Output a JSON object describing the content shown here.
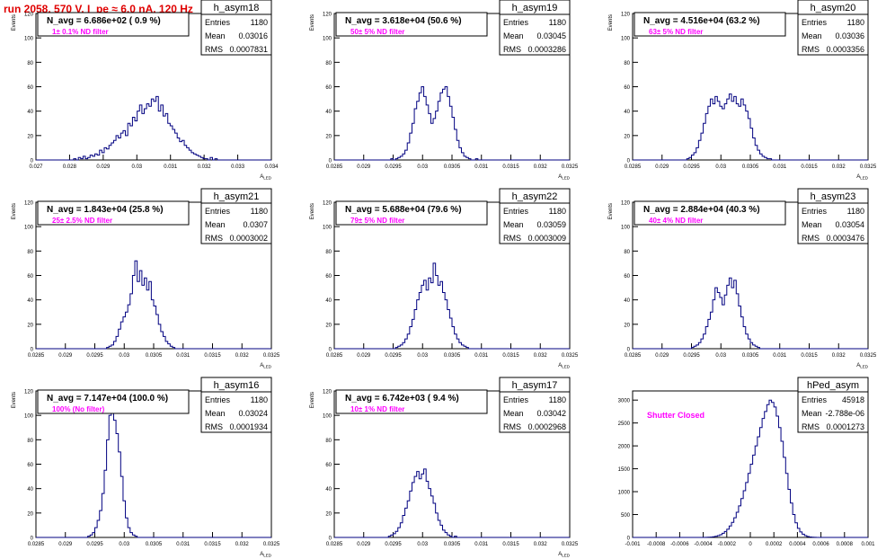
{
  "page_title": "run 2058,   570 V, I_pe ≈ 6.0 nA, 120 Hz",
  "colors": {
    "title": "#e00000",
    "histogram": "#000080",
    "note": "#ff00ff",
    "frame": "#000000"
  },
  "chart_data": [
    {
      "type": "histogram",
      "name": "h_asym18",
      "navg": "N_avg = 6.686e+02 ( 0.9 %)",
      "note": "1± 0.1% ND filter",
      "stats": [
        [
          "Entries",
          "1180"
        ],
        [
          "Mean",
          "0.03016"
        ],
        [
          "RMS",
          "0.0007831"
        ]
      ],
      "xlim": [
        0.027,
        0.034
      ],
      "ylim": [
        0,
        120
      ],
      "xticks": [
        "0.027",
        "0.028",
        "0.029",
        "0.03",
        "0.031",
        "0.032",
        "0.033",
        "0.034"
      ],
      "yticks": [
        "0",
        "20",
        "40",
        "60",
        "80",
        "100",
        "120"
      ],
      "xlabel": "A_LED",
      "ylabel": "Events",
      "bins": 100,
      "values": [
        0,
        0,
        0,
        0,
        0,
        0,
        0,
        0,
        0,
        0,
        0,
        0,
        0,
        0,
        0,
        0,
        1,
        0,
        2,
        1,
        3,
        1,
        2,
        4,
        3,
        5,
        4,
        8,
        6,
        10,
        9,
        12,
        14,
        16,
        20,
        18,
        22,
        24,
        20,
        30,
        28,
        35,
        32,
        40,
        45,
        38,
        42,
        46,
        44,
        50,
        48,
        52,
        40,
        45,
        36,
        38,
        30,
        28,
        25,
        22,
        18,
        15,
        16,
        12,
        10,
        8,
        6,
        5,
        4,
        3,
        2,
        1,
        1,
        0,
        2,
        0,
        1,
        0,
        0,
        0,
        0,
        0,
        0,
        0,
        0,
        0,
        0,
        0,
        0,
        0,
        0,
        0,
        0,
        0,
        0,
        0,
        0,
        0,
        0,
        0
      ]
    },
    {
      "type": "histogram",
      "name": "h_asym19",
      "navg": "N_avg = 3.618e+04 (50.6 %)",
      "note": "50± 5% ND filter",
      "stats": [
        [
          "Entries",
          "1180"
        ],
        [
          "Mean",
          "0.03045"
        ],
        [
          "RMS",
          "0.0003286"
        ]
      ],
      "xlim": [
        0.0285,
        0.0325
      ],
      "ylim": [
        0,
        120
      ],
      "xticks": [
        "0.0285",
        "0.029",
        "0.0295",
        "0.03",
        "0.0305",
        "0.031",
        "0.0315",
        "0.032",
        "0.0325"
      ],
      "yticks": [
        "0",
        "20",
        "40",
        "60",
        "80",
        "100",
        "120"
      ],
      "xlabel": "A_LED",
      "ylabel": "Events",
      "bins": 100,
      "values": [
        0,
        0,
        0,
        0,
        0,
        0,
        0,
        0,
        0,
        0,
        0,
        0,
        0,
        0,
        0,
        0,
        0,
        0,
        0,
        0,
        0,
        0,
        0,
        0,
        1,
        0,
        1,
        2,
        3,
        5,
        8,
        14,
        22,
        30,
        42,
        48,
        55,
        60,
        52,
        45,
        38,
        30,
        34,
        40,
        48,
        55,
        58,
        60,
        52,
        44,
        35,
        25,
        16,
        10,
        6,
        3,
        2,
        1,
        0,
        0,
        1,
        0,
        0,
        0,
        0,
        0,
        0,
        0,
        0,
        0,
        0,
        0,
        0,
        0,
        0,
        0,
        0,
        0,
        0,
        0,
        0,
        0,
        0,
        0,
        0,
        0,
        0,
        0,
        0,
        0,
        0,
        0,
        0,
        0,
        0,
        0,
        0,
        0,
        0,
        0
      ]
    },
    {
      "type": "histogram",
      "name": "h_asym20",
      "navg": "N_avg = 4.516e+04 (63.2 %)",
      "note": "63± 5% ND filter",
      "stats": [
        [
          "Entries",
          "1180"
        ],
        [
          "Mean",
          "0.03036"
        ],
        [
          "RMS",
          "0.0003356"
        ]
      ],
      "xlim": [
        0.0285,
        0.0325
      ],
      "ylim": [
        0,
        120
      ],
      "xticks": [
        "0.0285",
        "0.029",
        "0.0295",
        "0.03",
        "0.0305",
        "0.031",
        "0.0315",
        "0.032",
        "0.0325"
      ],
      "yticks": [
        "0",
        "20",
        "40",
        "60",
        "80",
        "100",
        "120"
      ],
      "xlabel": "A_LED",
      "ylabel": "Events",
      "bins": 100,
      "values": [
        0,
        0,
        0,
        0,
        0,
        0,
        0,
        0,
        0,
        0,
        0,
        0,
        0,
        0,
        0,
        0,
        0,
        0,
        0,
        0,
        0,
        0,
        0,
        1,
        2,
        4,
        6,
        10,
        16,
        22,
        30,
        38,
        44,
        50,
        46,
        52,
        48,
        44,
        42,
        46,
        50,
        54,
        48,
        52,
        46,
        44,
        50,
        45,
        40,
        34,
        26,
        18,
        12,
        8,
        5,
        3,
        2,
        1,
        1,
        0,
        0,
        0,
        0,
        0,
        0,
        0,
        0,
        0,
        0,
        0,
        0,
        0,
        0,
        0,
        0,
        0,
        0,
        0,
        0,
        0,
        0,
        0,
        0,
        0,
        0,
        0,
        0,
        0,
        0,
        0,
        0,
        0,
        0,
        0,
        0,
        0,
        0,
        0,
        0,
        0
      ]
    },
    {
      "type": "histogram",
      "name": "h_asym21",
      "navg": "N_avg = 1.843e+04 (25.8 %)",
      "note": "25± 2.5% ND filter",
      "stats": [
        [
          "Entries",
          "1180"
        ],
        [
          "Mean",
          "0.0307"
        ],
        [
          "RMS",
          "0.0003002"
        ]
      ],
      "xlim": [
        0.0285,
        0.0325
      ],
      "ylim": [
        0,
        120
      ],
      "xticks": [
        "0.0285",
        "0.029",
        "0.0295",
        "0.03",
        "0.0305",
        "0.031",
        "0.0315",
        "0.032",
        "0.0325"
      ],
      "yticks": [
        "0",
        "20",
        "40",
        "60",
        "80",
        "100",
        "120"
      ],
      "xlabel": "A_LED",
      "ylabel": "Events",
      "bins": 100,
      "values": [
        0,
        0,
        0,
        0,
        0,
        0,
        0,
        0,
        0,
        0,
        0,
        0,
        0,
        0,
        0,
        0,
        0,
        0,
        0,
        0,
        0,
        0,
        0,
        0,
        0,
        0,
        0,
        0,
        0,
        0,
        1,
        2,
        3,
        6,
        10,
        16,
        22,
        26,
        30,
        36,
        45,
        60,
        72,
        55,
        64,
        52,
        58,
        48,
        55,
        40,
        35,
        28,
        20,
        14,
        10,
        6,
        4,
        2,
        1,
        0,
        0,
        0,
        0,
        0,
        0,
        0,
        0,
        0,
        0,
        0,
        0,
        0,
        0,
        0,
        0,
        0,
        0,
        0,
        0,
        0,
        0,
        0,
        0,
        0,
        0,
        0,
        0,
        0,
        0,
        0,
        0,
        0,
        0,
        0,
        0,
        0,
        0,
        0,
        0,
        0
      ]
    },
    {
      "type": "histogram",
      "name": "h_asym22",
      "navg": "N_avg = 5.688e+04 (79.6 %)",
      "note": "79± 5% ND filter",
      "stats": [
        [
          "Entries",
          "1180"
        ],
        [
          "Mean",
          "0.03059"
        ],
        [
          "RMS",
          "0.0003009"
        ]
      ],
      "xlim": [
        0.0285,
        0.0325
      ],
      "ylim": [
        0,
        120
      ],
      "xticks": [
        "0.0285",
        "0.029",
        "0.0295",
        "0.03",
        "0.0305",
        "0.031",
        "0.0315",
        "0.032",
        "0.0325"
      ],
      "yticks": [
        "0",
        "20",
        "40",
        "60",
        "80",
        "100",
        "120"
      ],
      "xlabel": "A_LED",
      "ylabel": "Events",
      "bins": 100,
      "values": [
        0,
        0,
        0,
        0,
        0,
        0,
        0,
        0,
        0,
        0,
        0,
        0,
        0,
        0,
        0,
        0,
        0,
        0,
        0,
        0,
        0,
        0,
        0,
        0,
        0,
        0,
        1,
        2,
        3,
        5,
        8,
        12,
        18,
        24,
        32,
        40,
        46,
        52,
        56,
        48,
        58,
        54,
        70,
        60,
        52,
        55,
        46,
        40,
        32,
        25,
        18,
        12,
        8,
        5,
        3,
        2,
        1,
        0,
        0,
        0,
        0,
        0,
        0,
        0,
        0,
        0,
        0,
        0,
        0,
        0,
        0,
        0,
        0,
        0,
        0,
        0,
        0,
        0,
        0,
        0,
        0,
        0,
        0,
        0,
        0,
        0,
        0,
        0,
        0,
        0,
        0,
        0,
        0,
        0,
        0,
        0,
        0,
        0,
        0,
        0
      ]
    },
    {
      "type": "histogram",
      "name": "h_asym23",
      "navg": "N_avg = 2.884e+04 (40.3 %)",
      "note": "40± 4% ND filter",
      "stats": [
        [
          "Entries",
          "1180"
        ],
        [
          "Mean",
          "0.03054"
        ],
        [
          "RMS",
          "0.0003476"
        ]
      ],
      "xlim": [
        0.0285,
        0.0325
      ],
      "ylim": [
        0,
        120
      ],
      "xticks": [
        "0.0285",
        "0.029",
        "0.0295",
        "0.03",
        "0.0305",
        "0.031",
        "0.0315",
        "0.032",
        "0.0325"
      ],
      "yticks": [
        "0",
        "20",
        "40",
        "60",
        "80",
        "100",
        "120"
      ],
      "xlabel": "A_LED",
      "ylabel": "Events",
      "bins": 100,
      "values": [
        0,
        0,
        0,
        0,
        0,
        0,
        0,
        0,
        0,
        0,
        0,
        0,
        0,
        0,
        0,
        0,
        0,
        0,
        0,
        0,
        0,
        0,
        0,
        0,
        0,
        1,
        2,
        3,
        5,
        8,
        12,
        18,
        24,
        30,
        40,
        50,
        46,
        42,
        36,
        44,
        52,
        58,
        50,
        56,
        45,
        35,
        26,
        18,
        12,
        8,
        5,
        3,
        2,
        1,
        0,
        0,
        0,
        0,
        0,
        0,
        0,
        0,
        0,
        0,
        0,
        0,
        0,
        0,
        0,
        0,
        0,
        0,
        0,
        0,
        0,
        0,
        0,
        0,
        0,
        0,
        0,
        0,
        0,
        0,
        0,
        0,
        0,
        0,
        0,
        0,
        0,
        0,
        0,
        0,
        0,
        0,
        0,
        0,
        0,
        0
      ]
    },
    {
      "type": "histogram",
      "name": "h_asym16",
      "navg": "N_avg = 7.147e+04 (100.0 %)",
      "note": "100% (No filter)",
      "stats": [
        [
          "Entries",
          "1180"
        ],
        [
          "Mean",
          "0.03024"
        ],
        [
          "RMS",
          "0.0001934"
        ]
      ],
      "xlim": [
        0.0285,
        0.0325
      ],
      "ylim": [
        0,
        120
      ],
      "xticks": [
        "0.0285",
        "0.029",
        "0.0295",
        "0.03",
        "0.0305",
        "0.031",
        "0.0315",
        "0.032",
        "0.0325"
      ],
      "yticks": [
        "0",
        "20",
        "40",
        "60",
        "80",
        "100",
        "120"
      ],
      "xlabel": "A_LED",
      "ylabel": "Events",
      "bins": 100,
      "values": [
        0,
        0,
        0,
        0,
        0,
        0,
        0,
        0,
        0,
        0,
        0,
        0,
        0,
        0,
        0,
        0,
        0,
        0,
        0,
        0,
        0,
        0,
        1,
        2,
        4,
        8,
        14,
        22,
        36,
        55,
        80,
        100,
        110,
        96,
        85,
        70,
        50,
        30,
        16,
        8,
        4,
        2,
        1,
        0,
        0,
        0,
        0,
        0,
        0,
        0,
        0,
        0,
        0,
        0,
        0,
        0,
        0,
        0,
        0,
        0,
        0,
        0,
        0,
        0,
        0,
        0,
        0,
        0,
        0,
        0,
        0,
        0,
        0,
        0,
        0,
        0,
        0,
        0,
        0,
        0,
        0,
        0,
        0,
        0,
        0,
        0,
        0,
        0,
        0,
        0,
        0,
        0,
        0,
        0,
        0,
        0,
        0,
        0,
        0,
        0
      ]
    },
    {
      "type": "histogram",
      "name": "h_asym17",
      "navg": "N_avg = 6.742e+03 ( 9.4 %)",
      "note": "10± 1% ND filter",
      "stats": [
        [
          "Entries",
          "1180"
        ],
        [
          "Mean",
          "0.03042"
        ],
        [
          "RMS",
          "0.0002968"
        ]
      ],
      "xlim": [
        0.0285,
        0.0325
      ],
      "ylim": [
        0,
        120
      ],
      "xticks": [
        "0.0285",
        "0.029",
        "0.0295",
        "0.03",
        "0.0305",
        "0.031",
        "0.0315",
        "0.032",
        "0.0325"
      ],
      "yticks": [
        "0",
        "20",
        "40",
        "60",
        "80",
        "100",
        "120"
      ],
      "xlabel": "A_LED",
      "ylabel": "Events",
      "bins": 100,
      "values": [
        0,
        0,
        0,
        0,
        0,
        0,
        0,
        0,
        0,
        0,
        0,
        0,
        0,
        0,
        0,
        0,
        0,
        0,
        0,
        0,
        0,
        0,
        0,
        1,
        2,
        3,
        5,
        8,
        12,
        18,
        24,
        30,
        38,
        45,
        50,
        54,
        48,
        52,
        56,
        46,
        40,
        34,
        28,
        20,
        14,
        10,
        6,
        4,
        2,
        1,
        0,
        1,
        0,
        0,
        0,
        0,
        0,
        0,
        0,
        0,
        0,
        0,
        0,
        0,
        0,
        0,
        0,
        0,
        0,
        0,
        0,
        0,
        0,
        0,
        0,
        0,
        0,
        0,
        0,
        0,
        0,
        0,
        0,
        0,
        0,
        0,
        0,
        0,
        0,
        0,
        0,
        0,
        0,
        0,
        0,
        0,
        0,
        0,
        0,
        0
      ]
    },
    {
      "type": "histogram",
      "name": "hPed_asym",
      "navg": "",
      "note": "Shutter Closed",
      "stats": [
        [
          "Entries",
          "45918"
        ],
        [
          "Mean",
          "-2.788e-06"
        ],
        [
          "RMS",
          "0.0001273"
        ]
      ],
      "xlim": [
        -0.001,
        0.001
      ],
      "ylim": [
        0,
        3200
      ],
      "xticks": [
        "-0.001",
        "-0.0008",
        "-0.0006",
        "-0.0004",
        "-0.0002",
        "0",
        "0.0002",
        "0.0004",
        "0.0006",
        "0.0008",
        "0.001"
      ],
      "yticks": [
        "0",
        "500",
        "1000",
        "1500",
        "2000",
        "2500",
        "3000"
      ],
      "xlabel": "",
      "ylabel": "",
      "bins": 100,
      "values": [
        0,
        0,
        0,
        0,
        0,
        0,
        0,
        0,
        0,
        0,
        0,
        0,
        0,
        0,
        0,
        0,
        0,
        0,
        0,
        0,
        0,
        0,
        0,
        0,
        0,
        0,
        0,
        0,
        0,
        0,
        1,
        2,
        4,
        8,
        15,
        25,
        40,
        60,
        90,
        130,
        180,
        250,
        330,
        430,
        550,
        690,
        850,
        1020,
        1200,
        1400,
        1600,
        1800,
        2000,
        2200,
        2400,
        2600,
        2750,
        2900,
        3000,
        2950,
        2850,
        2650,
        2400,
        2100,
        1750,
        1400,
        1050,
        750,
        500,
        320,
        200,
        120,
        70,
        40,
        20,
        10,
        5,
        2,
        1,
        0,
        0,
        0,
        0,
        0,
        0,
        0,
        0,
        0,
        0,
        0,
        0,
        0,
        0,
        0,
        0,
        0,
        0,
        0,
        0,
        0
      ]
    }
  ]
}
